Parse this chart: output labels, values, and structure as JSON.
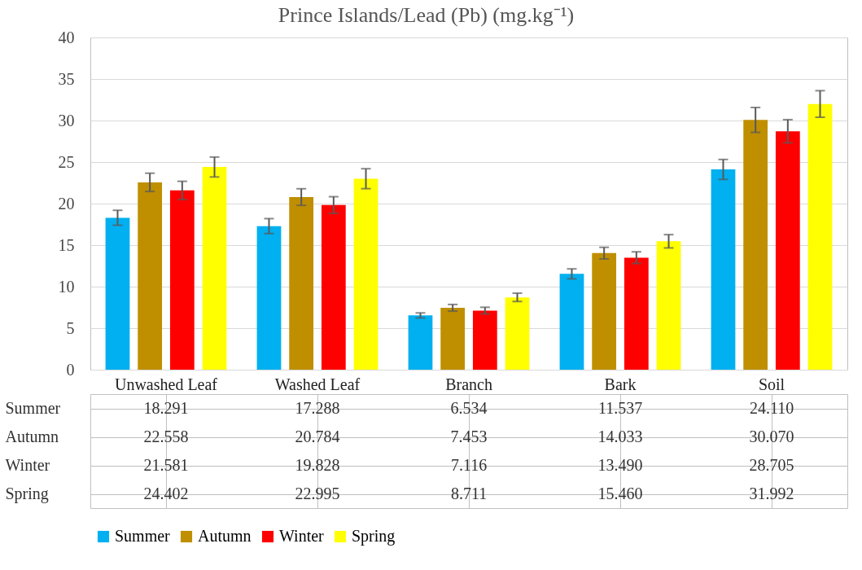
{
  "chart_data": {
    "type": "bar",
    "title": "Prince Islands/Lead (Pb) (mg.kg⁻¹)",
    "categories": [
      "Unwashed Leaf",
      "Washed Leaf",
      "Branch",
      "Bark",
      "Soil"
    ],
    "series": [
      {
        "name": "Summer",
        "color": "#00b0f0",
        "values": [
          18.291,
          17.288,
          6.534,
          11.537,
          24.11
        ],
        "value_labels": [
          "18.291",
          "17.288",
          "6.534",
          "11.537",
          "24.110"
        ],
        "errors": [
          0.9,
          0.9,
          0.3,
          0.6,
          1.2
        ]
      },
      {
        "name": "Autumn",
        "color": "#bf8f00",
        "values": [
          22.558,
          20.784,
          7.453,
          14.033,
          30.07
        ],
        "value_labels": [
          "22.558",
          "20.784",
          "7.453",
          "14.033",
          "30.070"
        ],
        "errors": [
          1.1,
          1.0,
          0.4,
          0.7,
          1.5
        ]
      },
      {
        "name": "Winter",
        "color": "#ff0000",
        "values": [
          21.581,
          19.828,
          7.116,
          13.49,
          28.705
        ],
        "value_labels": [
          "21.581",
          "19.828",
          "7.116",
          "13.490",
          "28.705"
        ],
        "errors": [
          1.1,
          1.0,
          0.4,
          0.7,
          1.4
        ]
      },
      {
        "name": "Spring",
        "color": "#ffff00",
        "values": [
          24.402,
          22.995,
          8.711,
          15.46,
          31.992
        ],
        "value_labels": [
          "24.402",
          "22.995",
          "8.711",
          "15.460",
          "31.992"
        ],
        "errors": [
          1.2,
          1.2,
          0.5,
          0.8,
          1.6
        ]
      }
    ],
    "ylim": [
      0,
      40
    ],
    "yticks": [
      0,
      5,
      10,
      15,
      20,
      25,
      30,
      35,
      40
    ],
    "grid": "y",
    "legend": "bottom"
  }
}
